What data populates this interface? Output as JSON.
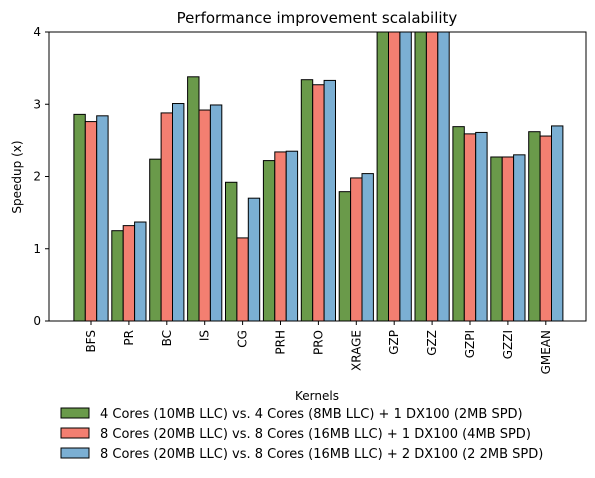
{
  "chart_data": {
    "type": "bar",
    "title": "Performance improvement scalability",
    "xlabel": "Kernels",
    "ylabel": "Speedup (x)",
    "ylim": [
      0,
      4
    ],
    "yticks": [
      "0",
      "1",
      "2",
      "3",
      "4"
    ],
    "categories": [
      "BFS",
      "PR",
      "BC",
      "IS",
      "CG",
      "PRH",
      "PRO",
      "XRAGE",
      "GZP",
      "GZZ",
      "GZPI",
      "GZZI",
      "GMEAN"
    ],
    "series": [
      {
        "name": "4 Cores (10MB LLC) vs. 4 Cores (8MB LLC) + 1 DX100 (2MB SPD)",
        "color": "#6a9a4a",
        "values": [
          2.86,
          1.25,
          2.24,
          3.38,
          1.92,
          2.22,
          3.34,
          1.79,
          4.0,
          4.0,
          2.69,
          2.27,
          2.62
        ]
      },
      {
        "name": "8 Cores (20MB LLC) vs. 8 Cores (16MB LLC) + 1 DX100 (4MB SPD)",
        "color": "#f37f71",
        "values": [
          2.76,
          1.32,
          2.88,
          2.92,
          1.15,
          2.34,
          3.27,
          1.98,
          4.0,
          4.0,
          2.59,
          2.27,
          2.56
        ]
      },
      {
        "name": "8 Cores (20MB LLC) vs. 8 Cores (16MB LLC) + 2 DX100 (2 2MB SPD)",
        "color": "#7bafd3",
        "values": [
          2.84,
          1.37,
          3.01,
          2.99,
          1.7,
          2.35,
          3.33,
          2.04,
          4.0,
          4.0,
          2.61,
          2.3,
          2.7
        ]
      }
    ],
    "legend_position": "bottom"
  }
}
